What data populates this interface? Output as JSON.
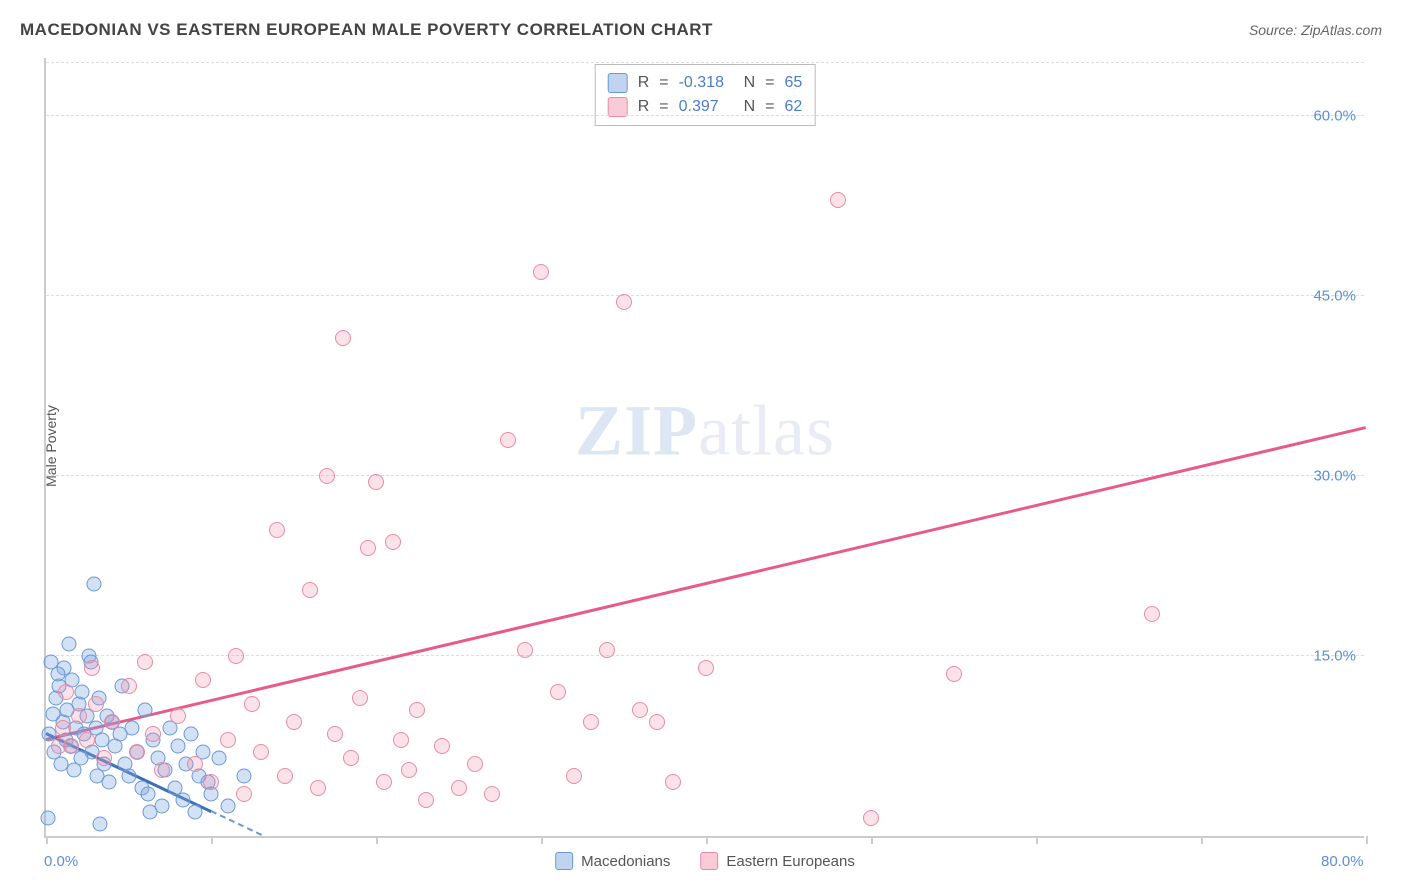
{
  "title": "MACEDONIAN VS EASTERN EUROPEAN MALE POVERTY CORRELATION CHART",
  "source_label": "Source: ",
  "source_name": "ZipAtlas.com",
  "ylabel": "Male Poverty",
  "watermark_bold": "ZIP",
  "watermark_rest": "atlas",
  "chart": {
    "type": "scatter",
    "background_color": "#ffffff",
    "grid_color": "#dddddd",
    "axis_color": "#cccccc",
    "tick_label_color": "#5b8fd6",
    "xlim": [
      0,
      80
    ],
    "ylim": [
      0,
      65
    ],
    "x_ticks": [
      0,
      10,
      20,
      30,
      40,
      50,
      60,
      70,
      80
    ],
    "x_tick_labels": {
      "0": "0.0%",
      "80": "80.0%"
    },
    "y_grid": [
      15,
      30,
      45,
      60
    ],
    "y_tick_labels": {
      "15": "15.0%",
      "30": "30.0%",
      "45": "45.0%",
      "60": "60.0%"
    },
    "marker_radius": 8,
    "series": [
      {
        "name": "Macedonians",
        "color_fill": "rgba(130,170,225,0.35)",
        "color_stroke": "#6a98d4",
        "trend_color": "#3a6fb7",
        "trend": {
          "x1": 0,
          "y1": 8.5,
          "x2": 10,
          "y2": 2.0,
          "dash_extend_x": 15
        },
        "R": "-0.318",
        "N": "65",
        "points": [
          [
            0.2,
            8.5
          ],
          [
            0.4,
            10.2
          ],
          [
            0.5,
            7.0
          ],
          [
            0.6,
            11.5
          ],
          [
            0.8,
            12.5
          ],
          [
            0.9,
            6.0
          ],
          [
            1.0,
            9.5
          ],
          [
            1.1,
            14.0
          ],
          [
            1.2,
            8.0
          ],
          [
            1.3,
            10.5
          ],
          [
            1.5,
            7.5
          ],
          [
            1.6,
            13.0
          ],
          [
            1.7,
            5.5
          ],
          [
            1.8,
            9.0
          ],
          [
            2.0,
            11.0
          ],
          [
            2.1,
            6.5
          ],
          [
            2.2,
            12.0
          ],
          [
            2.3,
            8.5
          ],
          [
            2.5,
            10.0
          ],
          [
            2.6,
            15.0
          ],
          [
            2.7,
            14.5
          ],
          [
            2.8,
            7.0
          ],
          [
            2.9,
            21.0
          ],
          [
            3.0,
            9.0
          ],
          [
            3.1,
            5.0
          ],
          [
            3.2,
            11.5
          ],
          [
            3.4,
            8.0
          ],
          [
            3.5,
            6.0
          ],
          [
            3.7,
            10.0
          ],
          [
            3.8,
            4.5
          ],
          [
            4.0,
            9.5
          ],
          [
            4.2,
            7.5
          ],
          [
            4.5,
            8.5
          ],
          [
            4.6,
            12.5
          ],
          [
            4.8,
            6.0
          ],
          [
            5.0,
            5.0
          ],
          [
            5.2,
            9.0
          ],
          [
            5.5,
            7.0
          ],
          [
            5.8,
            4.0
          ],
          [
            6.0,
            10.5
          ],
          [
            6.2,
            3.5
          ],
          [
            6.5,
            8.0
          ],
          [
            6.8,
            6.5
          ],
          [
            7.0,
            2.5
          ],
          [
            7.2,
            5.5
          ],
          [
            7.5,
            9.0
          ],
          [
            7.8,
            4.0
          ],
          [
            8.0,
            7.5
          ],
          [
            8.3,
            3.0
          ],
          [
            8.5,
            6.0
          ],
          [
            8.8,
            8.5
          ],
          [
            9.0,
            2.0
          ],
          [
            9.3,
            5.0
          ],
          [
            9.5,
            7.0
          ],
          [
            9.8,
            4.5
          ],
          [
            10.0,
            3.5
          ],
          [
            10.5,
            6.5
          ],
          [
            11.0,
            2.5
          ],
          [
            12.0,
            5.0
          ],
          [
            0.3,
            14.5
          ],
          [
            0.7,
            13.5
          ],
          [
            1.4,
            16.0
          ],
          [
            0.1,
            1.5
          ],
          [
            3.3,
            1.0
          ],
          [
            6.3,
            2.0
          ]
        ]
      },
      {
        "name": "Eastern Europeans",
        "color_fill": "rgba(240,140,165,0.25)",
        "color_stroke": "#e88aa5",
        "trend_color": "#e75a8a",
        "trend": {
          "x1": 0,
          "y1": 8.0,
          "x2": 80,
          "y2": 34.0
        },
        "R": "0.397",
        "N": "62",
        "points": [
          [
            1.0,
            9.0
          ],
          [
            1.5,
            7.5
          ],
          [
            2.0,
            10.0
          ],
          [
            2.5,
            8.0
          ],
          [
            3.0,
            11.0
          ],
          [
            3.5,
            6.5
          ],
          [
            4.0,
            9.5
          ],
          [
            5.0,
            12.5
          ],
          [
            5.5,
            7.0
          ],
          [
            6.0,
            14.5
          ],
          [
            6.5,
            8.5
          ],
          [
            7.0,
            5.5
          ],
          [
            8.0,
            10.0
          ],
          [
            9.0,
            6.0
          ],
          [
            9.5,
            13.0
          ],
          [
            10.0,
            4.5
          ],
          [
            11.0,
            8.0
          ],
          [
            11.5,
            15.0
          ],
          [
            12.0,
            3.5
          ],
          [
            12.5,
            11.0
          ],
          [
            13.0,
            7.0
          ],
          [
            14.0,
            25.5
          ],
          [
            14.5,
            5.0
          ],
          [
            15.0,
            9.5
          ],
          [
            16.0,
            20.5
          ],
          [
            16.5,
            4.0
          ],
          [
            17.0,
            30.0
          ],
          [
            17.5,
            8.5
          ],
          [
            18.0,
            41.5
          ],
          [
            18.5,
            6.5
          ],
          [
            19.0,
            11.5
          ],
          [
            19.5,
            24.0
          ],
          [
            20.0,
            29.5
          ],
          [
            20.5,
            4.5
          ],
          [
            21.0,
            24.5
          ],
          [
            21.5,
            8.0
          ],
          [
            22.0,
            5.5
          ],
          [
            22.5,
            10.5
          ],
          [
            23.0,
            3.0
          ],
          [
            24.0,
            7.5
          ],
          [
            25.0,
            4.0
          ],
          [
            26.0,
            6.0
          ],
          [
            27.0,
            3.5
          ],
          [
            28.0,
            33.0
          ],
          [
            29.0,
            15.5
          ],
          [
            30.0,
            47.0
          ],
          [
            31.0,
            12.0
          ],
          [
            32.0,
            5.0
          ],
          [
            33.0,
            9.5
          ],
          [
            34.0,
            15.5
          ],
          [
            35.0,
            44.5
          ],
          [
            36.0,
            10.5
          ],
          [
            37.0,
            9.5
          ],
          [
            38.0,
            4.5
          ],
          [
            40.0,
            14.0
          ],
          [
            48.0,
            53.0
          ],
          [
            50.0,
            1.5
          ],
          [
            55.0,
            13.5
          ],
          [
            67.0,
            18.5
          ],
          [
            1.2,
            12.0
          ],
          [
            2.8,
            14.0
          ],
          [
            0.8,
            7.5
          ]
        ]
      }
    ]
  },
  "legend_top": {
    "R_label": "R",
    "N_label": "N",
    "eq": "="
  },
  "legend_bottom": {
    "label1": "Macedonians",
    "label2": "Eastern Europeans"
  }
}
